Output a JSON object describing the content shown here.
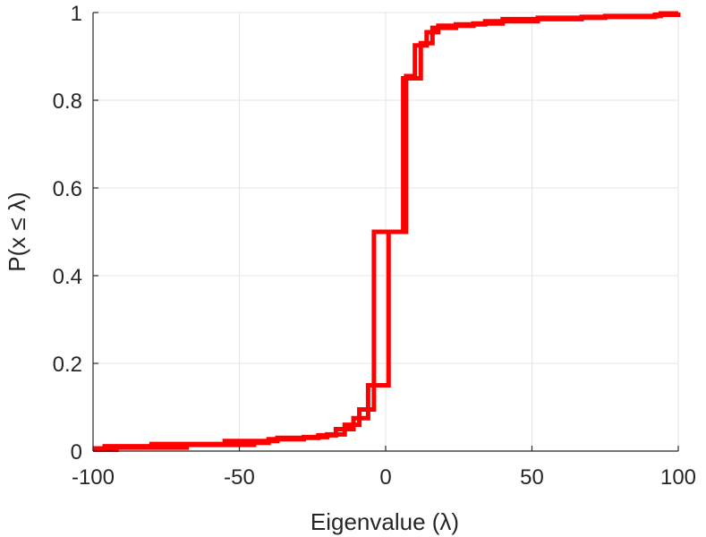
{
  "chart_data": {
    "type": "line",
    "step": true,
    "xlabel": "Eigenvalue (λ)",
    "ylabel": "P(x ≤ λ)",
    "xlim": [
      -100,
      100
    ],
    "ylim": [
      0,
      1
    ],
    "xticks": [
      -100,
      -50,
      0,
      50,
      100
    ],
    "xtick_labels": [
      "-100",
      "-50",
      "0",
      "50",
      "100"
    ],
    "yticks": [
      0,
      0.2,
      0.4,
      0.6,
      0.8,
      1
    ],
    "ytick_labels": [
      "0",
      "0.2",
      "0.4",
      "0.6",
      "0.8",
      "1"
    ],
    "grid": true,
    "series": [
      {
        "color": "#ff0000",
        "x": [
          -100,
          -92,
          -68,
          -45,
          -40,
          -28,
          -20,
          -14,
          -9,
          -4,
          3,
          7,
          10,
          14,
          18,
          30,
          40,
          67,
          92,
          100
        ],
        "y": [
          0.003,
          0.008,
          0.014,
          0.019,
          0.027,
          0.032,
          0.038,
          0.06,
          0.095,
          0.5,
          0.5,
          0.855,
          0.925,
          0.955,
          0.97,
          0.975,
          0.985,
          0.99,
          0.995,
          1.0
        ]
      },
      {
        "color": "#ff0000",
        "x": [
          -100,
          -96,
          -80,
          -55,
          -37,
          -23,
          -17,
          -11,
          -6,
          1,
          6,
          12,
          16,
          24,
          34,
          52,
          75,
          94,
          100
        ],
        "y": [
          0.006,
          0.011,
          0.016,
          0.023,
          0.03,
          0.036,
          0.05,
          0.075,
          0.15,
          0.5,
          0.85,
          0.93,
          0.965,
          0.973,
          0.98,
          0.988,
          0.992,
          0.998,
          1.0
        ]
      }
    ]
  }
}
